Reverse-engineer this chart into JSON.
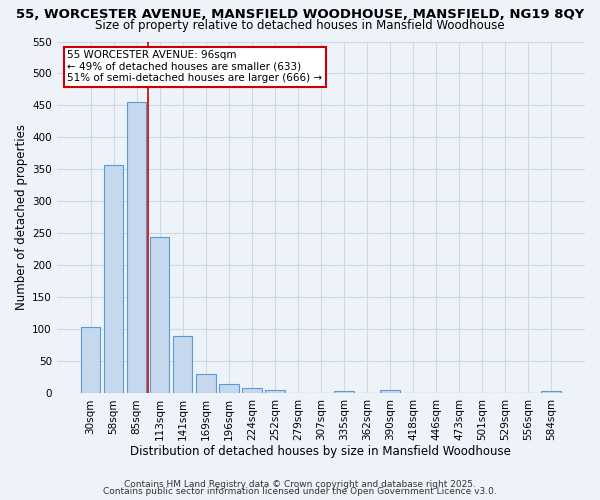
{
  "title_line1": "55, WORCESTER AVENUE, MANSFIELD WOODHOUSE, MANSFIELD, NG19 8QY",
  "title_line2": "Size of property relative to detached houses in Mansfield Woodhouse",
  "xlabel": "Distribution of detached houses by size in Mansfield Woodhouse",
  "ylabel": "Number of detached properties",
  "bar_labels": [
    "30sqm",
    "58sqm",
    "85sqm",
    "113sqm",
    "141sqm",
    "169sqm",
    "196sqm",
    "224sqm",
    "252sqm",
    "279sqm",
    "307sqm",
    "335sqm",
    "362sqm",
    "390sqm",
    "418sqm",
    "446sqm",
    "473sqm",
    "501sqm",
    "529sqm",
    "556sqm",
    "584sqm"
  ],
  "bar_values": [
    103,
    357,
    456,
    244,
    90,
    31,
    14,
    8,
    5,
    0,
    0,
    3,
    0,
    5,
    0,
    0,
    0,
    0,
    0,
    0,
    4
  ],
  "bar_color": "#c5d8ed",
  "bar_edge_color": "#5b9bd5",
  "red_line_x": 2.5,
  "annotation_text": "55 WORCESTER AVENUE: 96sqm\n← 49% of detached houses are smaller (633)\n51% of semi-detached houses are larger (666) →",
  "annotation_box_color": "white",
  "annotation_box_edge_color": "#cc0000",
  "ylim": [
    0,
    550
  ],
  "yticks": [
    0,
    50,
    100,
    150,
    200,
    250,
    300,
    350,
    400,
    450,
    500,
    550
  ],
  "footer_line1": "Contains HM Land Registry data © Crown copyright and database right 2025.",
  "footer_line2": "Contains public sector information licensed under the Open Government Licence v3.0.",
  "background_color": "#eef2f9",
  "grid_color": "#d0d8e8",
  "title_fontsize": 9.5,
  "subtitle_fontsize": 8.5,
  "axis_label_fontsize": 8.5,
  "tick_fontsize": 7.5,
  "footer_fontsize": 6.5
}
